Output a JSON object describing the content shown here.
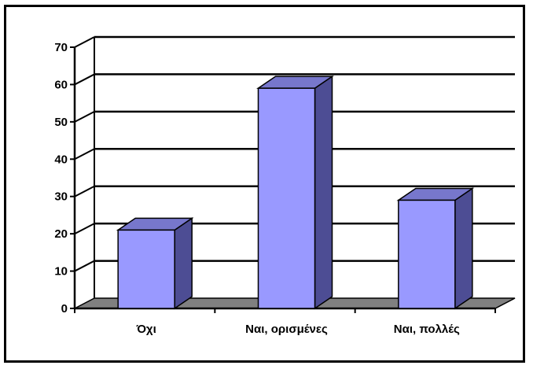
{
  "chart_data": {
    "type": "bar",
    "style": "3d-column",
    "categories": [
      "Όχι",
      "Ναι, ορισμένες",
      "Ναι, πολλές"
    ],
    "values": [
      21,
      59,
      29
    ],
    "ylim": [
      0,
      70
    ],
    "yticks": [
      0,
      10,
      20,
      30,
      40,
      50,
      60,
      70
    ],
    "grid": true,
    "legend": "none",
    "title": "",
    "xlabel": "",
    "ylabel": "",
    "colors": {
      "bar_front": "#9999ff",
      "bar_side": "#4d4d94",
      "bar_top": "#7777cc",
      "floor": "#808080",
      "grid": "#000000"
    }
  }
}
